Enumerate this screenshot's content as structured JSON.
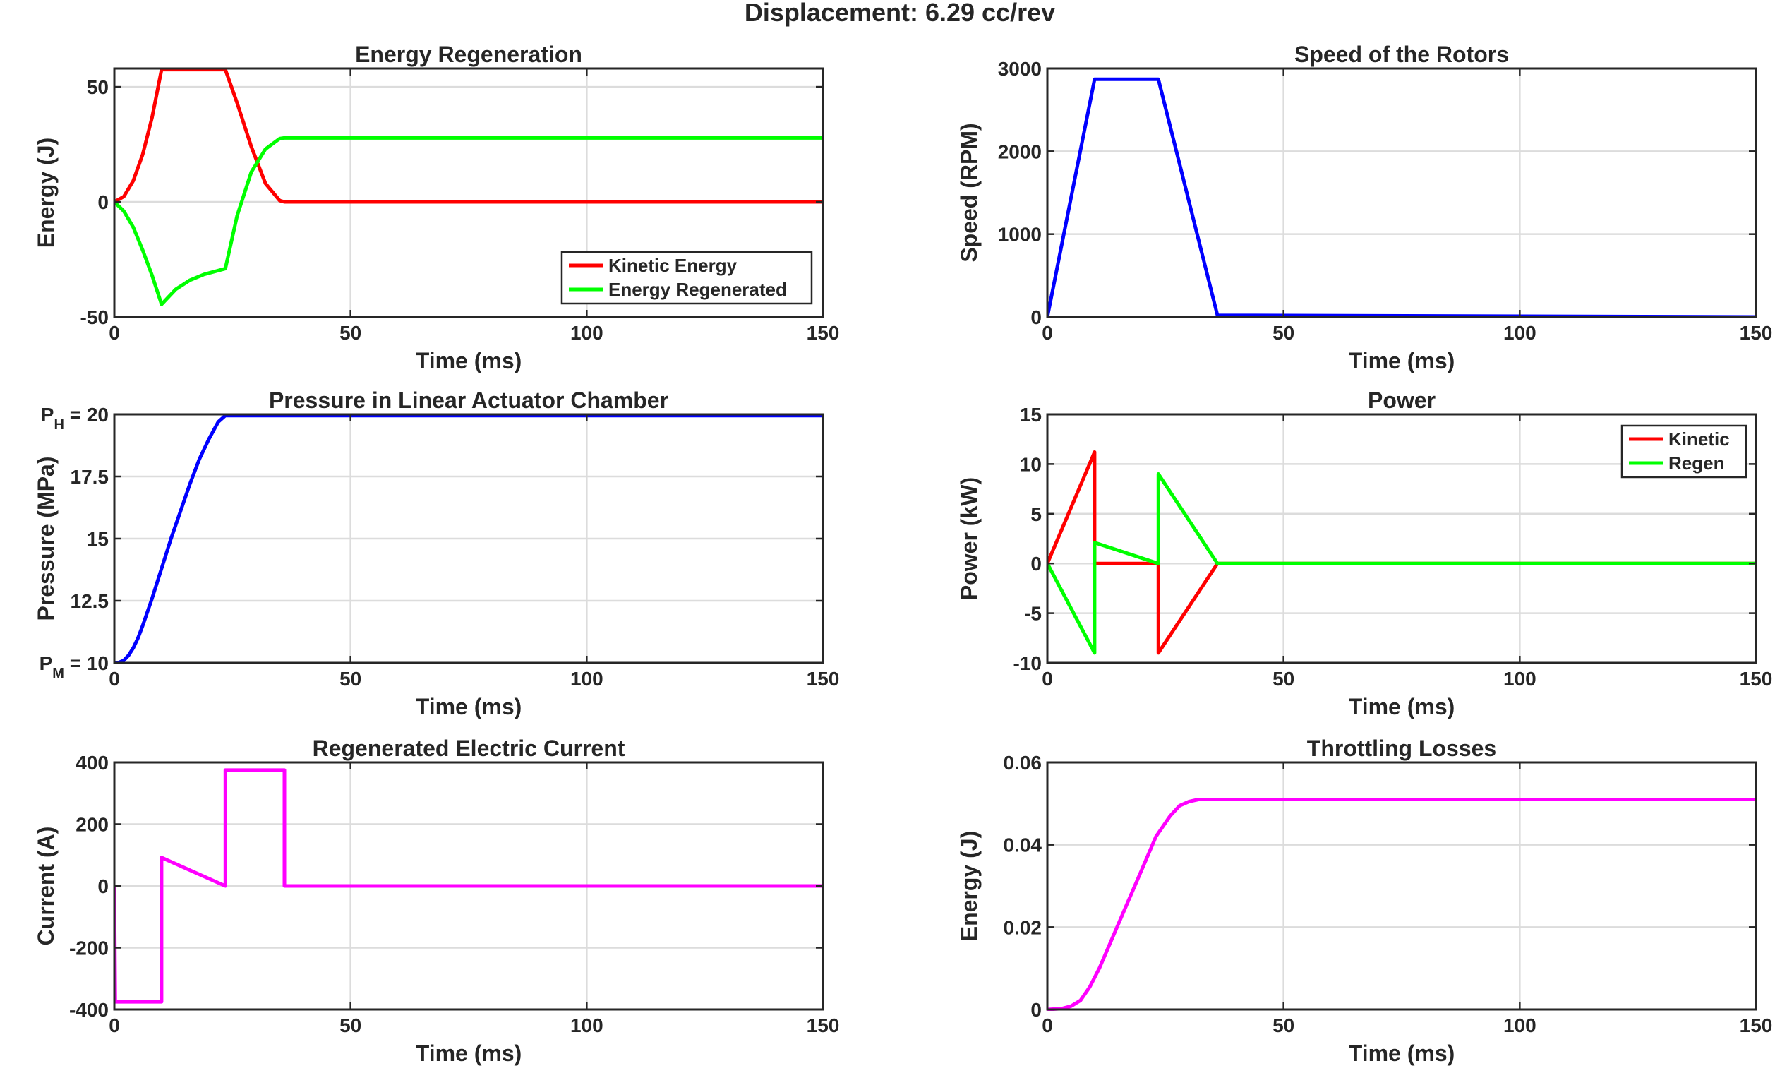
{
  "figure_title": "Displacement: 6.29 cc/rev",
  "chart_data": [
    {
      "type": "line",
      "title": "Energy Regeneration",
      "xlabel": "Time (ms)",
      "ylabel": "Energy (J)",
      "xlim": [
        0,
        150
      ],
      "ylim": [
        -50,
        58
      ],
      "xticks": [
        0,
        50,
        100,
        150
      ],
      "yticks": [
        -50,
        0,
        50
      ],
      "ytick_labels": [
        "-50",
        "0",
        "50"
      ],
      "grid": true,
      "legend": "bottom-right",
      "series": [
        {
          "name": "Kinetic Energy",
          "color": "#ff0000",
          "x": [
            0,
            2,
            4,
            6,
            8,
            10,
            23.5,
            26,
            29,
            32,
            35,
            36,
            150
          ],
          "y": [
            0,
            2.3,
            9.2,
            20.7,
            36.8,
            57.5,
            57.5,
            43,
            24,
            8,
            0.6,
            0,
            0
          ]
        },
        {
          "name": "Energy Regenerated",
          "color": "#00ff00",
          "x": [
            0,
            2,
            4,
            6,
            8,
            10,
            13,
            16,
            19,
            23.5,
            26,
            29,
            32,
            35,
            36,
            150
          ],
          "y": [
            0,
            -4,
            -11,
            -21,
            -32,
            -44.5,
            -38,
            -34,
            -31.5,
            -29,
            -6,
            13,
            23,
            27.5,
            27.8,
            27.8
          ]
        }
      ]
    },
    {
      "type": "line",
      "title": "Speed of the Rotors",
      "xlabel": "Time (ms)",
      "ylabel": "Speed (RPM)",
      "xlim": [
        0,
        150
      ],
      "ylim": [
        0,
        3000
      ],
      "xticks": [
        0,
        50,
        100,
        150
      ],
      "yticks": [
        0,
        1000,
        2000,
        3000
      ],
      "ytick_labels": [
        "0",
        "1000",
        "2000",
        "3000"
      ],
      "grid": true,
      "series": [
        {
          "color": "#0000ff",
          "x": [
            0,
            10,
            23.5,
            36,
            150
          ],
          "y": [
            0,
            2870,
            2870,
            20,
            0
          ]
        }
      ]
    },
    {
      "type": "line",
      "title": "Pressure in Linear Actuator Chamber",
      "xlabel": "Time (ms)",
      "ylabel": "Pressure (MPa)",
      "xlim": [
        0,
        150
      ],
      "ylim": [
        10,
        20
      ],
      "xticks": [
        0,
        50,
        100,
        150
      ],
      "yticks": [
        10,
        12.5,
        15,
        17.5,
        20
      ],
      "ytick_labels": [
        "P_M = 10",
        "12.5",
        "15",
        "17.5",
        "P_H = 20"
      ],
      "grid": true,
      "series": [
        {
          "color": "#0000ff",
          "x": [
            0,
            1,
            2,
            3,
            4,
            5,
            6,
            8,
            10,
            12,
            14,
            16,
            18,
            20,
            22,
            23.5,
            150
          ],
          "y": [
            10,
            10.02,
            10.1,
            10.3,
            10.6,
            11,
            11.5,
            12.6,
            13.8,
            15,
            16.1,
            17.2,
            18.2,
            19,
            19.7,
            19.95,
            19.95
          ]
        }
      ]
    },
    {
      "type": "line",
      "title": "Power",
      "xlabel": "Time (ms)",
      "ylabel": "Power (kW)",
      "xlim": [
        0,
        150
      ],
      "ylim": [
        -10,
        15
      ],
      "xticks": [
        0,
        50,
        100,
        150
      ],
      "yticks": [
        -10,
        -5,
        0,
        5,
        10,
        15
      ],
      "ytick_labels": [
        "-10",
        "-5",
        "0",
        "5",
        "10",
        "15"
      ],
      "grid": true,
      "legend": "top-right",
      "series": [
        {
          "name": "Kinetic",
          "color": "#ff0000",
          "x": [
            0,
            10,
            10,
            23.5,
            23.5,
            36,
            150
          ],
          "y": [
            0,
            11.2,
            0,
            0,
            -9,
            0,
            0
          ]
        },
        {
          "name": "Regen",
          "color": "#00ff00",
          "x": [
            0,
            10,
            10,
            23.5,
            23.5,
            36,
            150
          ],
          "y": [
            0,
            -9,
            2.1,
            0,
            9,
            0,
            0
          ]
        }
      ]
    },
    {
      "type": "line",
      "title": "Regenerated Electric Current",
      "xlabel": "Time (ms)",
      "ylabel": "Current (A)",
      "xlim": [
        0,
        150
      ],
      "ylim": [
        -400,
        400
      ],
      "xticks": [
        0,
        50,
        100,
        150
      ],
      "yticks": [
        -400,
        -200,
        0,
        200,
        400
      ],
      "ytick_labels": [
        "-400",
        "-200",
        "0",
        "200",
        "400"
      ],
      "grid": true,
      "series": [
        {
          "color": "#ff00ff",
          "x": [
            0,
            0.2,
            10,
            10,
            23.5,
            23.5,
            36,
            36,
            150
          ],
          "y": [
            0,
            -375,
            -375,
            92,
            0,
            375,
            375,
            0,
            0
          ]
        }
      ]
    },
    {
      "type": "line",
      "title": "Throttling Losses",
      "xlabel": "Time (ms)",
      "ylabel": "Energy (J)",
      "xlim": [
        0,
        150
      ],
      "ylim": [
        0,
        0.06
      ],
      "xticks": [
        0,
        50,
        100,
        150
      ],
      "yticks": [
        0,
        0.02,
        0.04,
        0.06
      ],
      "ytick_labels": [
        "0",
        "0.02",
        "0.04",
        "0.06"
      ],
      "grid": true,
      "series": [
        {
          "color": "#ff00ff",
          "x": [
            0,
            3,
            5,
            7,
            9,
            11,
            14,
            17,
            20,
            23,
            26,
            28,
            30,
            32,
            35,
            150
          ],
          "y": [
            0,
            0.0002,
            0.0008,
            0.0022,
            0.0055,
            0.01,
            0.018,
            0.026,
            0.034,
            0.042,
            0.047,
            0.0495,
            0.0505,
            0.051,
            0.051,
            0.051
          ]
        }
      ]
    }
  ]
}
